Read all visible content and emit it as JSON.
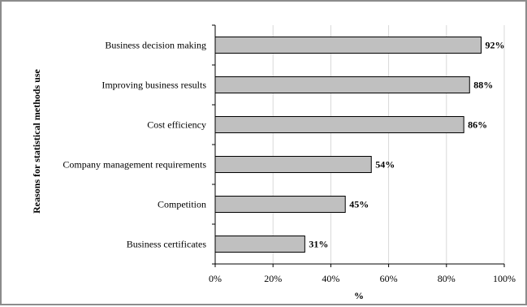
{
  "chart_data": {
    "type": "bar",
    "orientation": "horizontal",
    "title": "",
    "xlabel": "%",
    "ylabel": "Reasons for statistical methods use",
    "categories": [
      "Business decision making",
      "Improving business results",
      "Cost efficiency",
      "Company management requirements",
      "Competition",
      "Business certificates"
    ],
    "values": [
      92,
      88,
      86,
      54,
      45,
      31
    ],
    "data_labels": [
      "92%",
      "88%",
      "86%",
      "54%",
      "45%",
      "31%"
    ],
    "xlim": [
      0,
      100
    ],
    "xticks": [
      0,
      20,
      40,
      60,
      80,
      100
    ],
    "xtick_labels": [
      "0%",
      "20%",
      "40%",
      "60%",
      "80%",
      "100%"
    ],
    "grid": "vertical",
    "legend": "none",
    "colors": {
      "bar_fill": "#c0c0c0",
      "bar_stroke": "#000000",
      "grid": "#d9d9d9"
    }
  }
}
